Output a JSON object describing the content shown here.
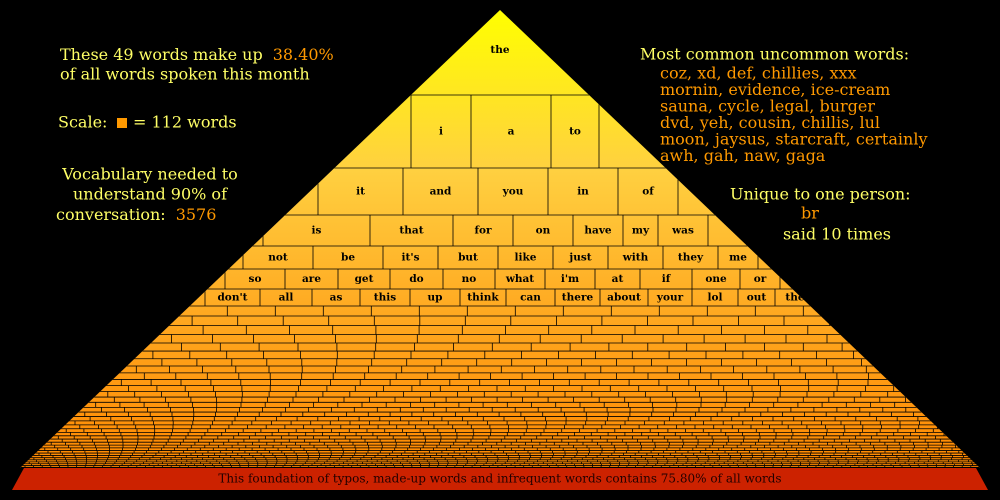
{
  "intro": {
    "text": "These 49 words make up",
    "percent": "38.40%",
    "line2": "of all words spoken this month"
  },
  "scale": {
    "label": "Scale:",
    "value": "= 112 words"
  },
  "vocabulary": {
    "lines": [
      "Vocabulary needed to",
      "understand 90% of",
      "conversation:"
    ],
    "value": "3576"
  },
  "uncommon": {
    "title": "Most common uncommon words:",
    "lines": [
      "coz, xd, def, chillies, xxx",
      "mornin, evidence, ice-cream",
      "sauna, cycle, legal, burger",
      "dvd, yeh, cousin, chillis, lul",
      "moon, jaysus, starcraft, certainly",
      "awh, gah, naw, gaga"
    ]
  },
  "unique": {
    "title": "Unique to one person:",
    "word": "br",
    "count": "said 10 times"
  },
  "pyramid": {
    "rows": [
      [
        "the"
      ],
      [
        "i",
        "a",
        "to"
      ],
      [
        "it",
        "and",
        "you",
        "in",
        "of"
      ],
      [
        "is",
        "that",
        "for",
        "on",
        "have",
        "my",
        "was"
      ],
      [
        "not",
        "be",
        "it's",
        "but",
        "like",
        "just",
        "with",
        "they",
        "me"
      ],
      [
        "so",
        "are",
        "get",
        "do",
        "no",
        "what",
        "i'm",
        "at",
        "if",
        "one",
        "or"
      ],
      [
        "don't",
        "all",
        "as",
        "this",
        "up",
        "think",
        "can",
        "there",
        "about",
        "your",
        "lol",
        "out",
        "the"
      ]
    ]
  },
  "foundation": "This foundation of typos, made-up words and infrequent words contains 75.80% of all words"
}
